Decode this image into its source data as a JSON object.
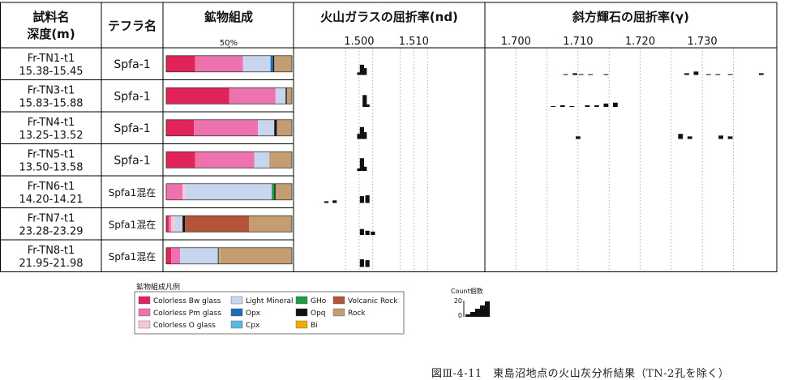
{
  "chart_data": {
    "type": "bar",
    "headers": {
      "sample": [
        "試料名",
        "深度(m)"
      ],
      "tephra": "テフラ名",
      "mineral": "鉱物組成",
      "mineral_tick": "50%",
      "glass": "火山ガラスの屈折率(nd)",
      "pyroxene": "斜方輝石の屈折率(γ)"
    },
    "glass_axis": {
      "range": [
        1.488,
        1.523
      ],
      "ticks": [
        1.5,
        1.51
      ],
      "tick_labels": [
        "1.500",
        "1.510"
      ]
    },
    "pyroxene_axis": {
      "range": [
        1.695,
        1.742
      ],
      "ticks": [
        1.7,
        1.71,
        1.72,
        1.73
      ],
      "tick_labels": [
        "1.700",
        "1.710",
        "1.720",
        "1.730"
      ]
    },
    "mineral_classes": [
      {
        "name": "Colorless Bw glass",
        "color": "#e0245a"
      },
      {
        "name": "Colorless Pm glass",
        "color": "#ee72ad"
      },
      {
        "name": "Colorless O glass",
        "color": "#f8c6da"
      },
      {
        "name": "Light Mineral",
        "color": "#c8d5ef"
      },
      {
        "name": "Opx",
        "color": "#1a6fb7"
      },
      {
        "name": "Cpx",
        "color": "#58b7e6"
      },
      {
        "name": "GHo",
        "color": "#1f9a45"
      },
      {
        "name": "Opq",
        "color": "#111111"
      },
      {
        "name": "Bi",
        "color": "#f2a900"
      },
      {
        "name": "Volcanic Rock",
        "color": "#b4553a"
      },
      {
        "name": "Rock",
        "color": "#c59d72"
      }
    ],
    "legend_title": "鉱物組成凡例",
    "legend_order": [
      0,
      3,
      6,
      9,
      1,
      4,
      7,
      10,
      2,
      5,
      8
    ],
    "count_legend": {
      "title": "Count個数",
      "max_label": "20",
      "min_label": "0",
      "max": 20
    },
    "samples": [
      {
        "name": "Fr-TN1-t1",
        "depth": "15.38-15.45",
        "tephra": "Spfa-1",
        "mineral": [
          23,
          38,
          0,
          22,
          2,
          0,
          0,
          1,
          0,
          0,
          14
        ],
        "glass": [
          [
            1.5,
            3
          ],
          [
            1.5005,
            12
          ],
          [
            1.501,
            8
          ]
        ],
        "pyroxene": [
          [
            1.708,
            1
          ],
          [
            1.7095,
            2
          ],
          [
            1.7105,
            1
          ],
          [
            1.712,
            1
          ],
          [
            1.7145,
            1
          ],
          [
            1.7275,
            2
          ],
          [
            1.729,
            4
          ],
          [
            1.731,
            1
          ],
          [
            1.7325,
            1
          ],
          [
            1.7345,
            1
          ],
          [
            1.7395,
            2
          ]
        ]
      },
      {
        "name": "Fr-TN3-t1",
        "depth": "15.83-15.88",
        "tephra": "Spfa-1",
        "mineral": [
          50,
          37,
          0,
          8,
          0,
          0,
          0,
          1,
          0,
          0,
          4
        ],
        "glass": [
          [
            1.501,
            14
          ],
          [
            1.5015,
            3
          ]
        ],
        "pyroxene": [
          [
            1.706,
            1
          ],
          [
            1.7075,
            2
          ],
          [
            1.709,
            1
          ],
          [
            1.7115,
            2
          ],
          [
            1.713,
            2
          ],
          [
            1.7145,
            4
          ],
          [
            1.716,
            5
          ]
        ]
      },
      {
        "name": "Fr-TN4-t1",
        "depth": "13.25-13.52",
        "tephra": "Spfa-1",
        "mineral": [
          22,
          51,
          0,
          13,
          0,
          0,
          0,
          2,
          0,
          0,
          12
        ],
        "glass": [
          [
            1.5,
            6
          ],
          [
            1.5005,
            14
          ],
          [
            1.501,
            8
          ]
        ],
        "pyroxene": [
          [
            1.71,
            3
          ],
          [
            1.7265,
            6
          ],
          [
            1.728,
            3
          ],
          [
            1.733,
            4
          ],
          [
            1.7345,
            3
          ]
        ]
      },
      {
        "name": "Fr-TN5-t1",
        "depth": "13.50-13.58",
        "tephra": "Spfa-1",
        "mineral": [
          23,
          47,
          0,
          12,
          0,
          0,
          0,
          0,
          0,
          0,
          18
        ],
        "glass": [
          [
            1.5,
            3
          ],
          [
            1.5005,
            15
          ],
          [
            1.501,
            5
          ]
        ],
        "pyroxene": []
      },
      {
        "name": "Fr-TN6-t1",
        "depth": "14.20-14.21",
        "tephra": "Spfa1混在",
        "mineral": [
          0,
          13,
          2,
          69,
          0,
          0,
          2,
          1,
          0,
          0,
          13
        ],
        "glass": [
          [
            1.494,
            2
          ],
          [
            1.4955,
            3
          ],
          [
            1.5005,
            8
          ],
          [
            1.5015,
            9
          ]
        ],
        "pyroxene": []
      },
      {
        "name": "Fr-TN7-t1",
        "depth": "23.28-23.29",
        "tephra": "Spfa1混在",
        "mineral": [
          2,
          2,
          3,
          6,
          0,
          0,
          0,
          2,
          0,
          51,
          34
        ],
        "glass": [
          [
            1.5005,
            7
          ],
          [
            1.5015,
            5
          ],
          [
            1.5025,
            4
          ]
        ],
        "pyroxene": []
      },
      {
        "name": "Fr-TN8-t1",
        "depth": "21.95-21.98",
        "tephra": "Spfa1混在",
        "mineral": [
          4,
          7,
          0,
          30,
          1,
          0,
          0,
          0,
          1,
          0,
          57
        ],
        "glass": [
          [
            1.5005,
            9
          ],
          [
            1.5015,
            8
          ]
        ],
        "pyroxene": []
      }
    ]
  },
  "caption": "図Ⅲ-4-11　東島沼地点の火山灰分析結果（TN-2孔を除く）"
}
